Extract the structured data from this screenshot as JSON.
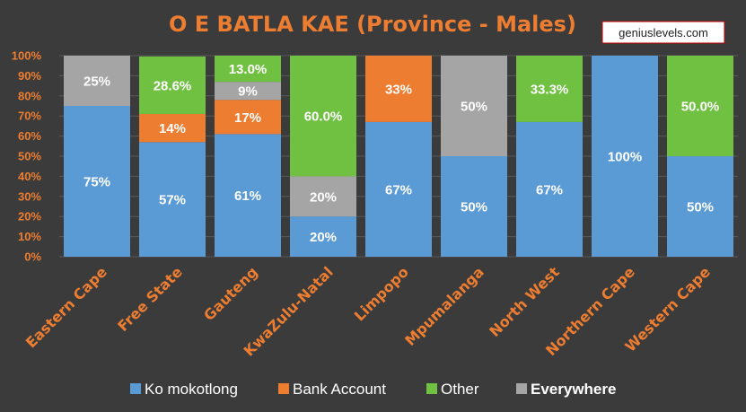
{
  "chart_data": {
    "type": "bar",
    "stacked": true,
    "title": "O E BATLA KAE (Province - Males)",
    "watermark": "geniuslevels.com",
    "categories": [
      "Eastern Cape",
      "Free State",
      "Gauteng",
      "KwaZulu-Natal",
      "Limpopo",
      "Mpumalanga",
      "North West",
      "Northern Cape",
      "Western Cape"
    ],
    "ylim": [
      0,
      100
    ],
    "yticks": [
      "0%",
      "10%",
      "20%",
      "30%",
      "40%",
      "50%",
      "60%",
      "70%",
      "80%",
      "90%",
      "100%"
    ],
    "grid": true,
    "legend_position": "bottom",
    "series": [
      {
        "name": "Ko mokotlong",
        "color": "#5b9bd5",
        "values": [
          75,
          57,
          61,
          20,
          67,
          50,
          67,
          100,
          50
        ],
        "labels": [
          "75%",
          "57%",
          "61%",
          "20%",
          "67%",
          "50%",
          "67%",
          "100%",
          "50%"
        ]
      },
      {
        "name": "Bank Account",
        "color": "#ed7d31",
        "values": [
          0,
          14,
          17,
          0,
          33,
          0,
          0,
          0,
          0
        ],
        "labels": [
          "",
          "14%",
          "17%",
          "",
          "33%",
          "",
          "",
          "",
          ""
        ]
      },
      {
        "name": "Other",
        "color": "#70c042",
        "values": [
          0,
          28.6,
          13.0,
          60.0,
          0,
          0,
          33.3,
          0,
          50.0
        ],
        "labels": [
          "",
          "28.6%",
          "13.0%",
          "60.0%",
          "",
          "",
          "33.3%",
          "",
          "50.0%"
        ]
      },
      {
        "name": "Everywhere",
        "color": "#a5a5a5",
        "values": [
          25,
          0,
          9,
          20,
          0,
          50,
          0,
          0,
          0
        ],
        "labels": [
          "25%",
          "",
          "9%",
          "20%",
          "",
          "50%",
          "",
          "",
          ""
        ]
      }
    ],
    "stack_order": [
      "Ko mokotlong",
      "Bank Account",
      "Everywhere",
      "Other"
    ]
  }
}
